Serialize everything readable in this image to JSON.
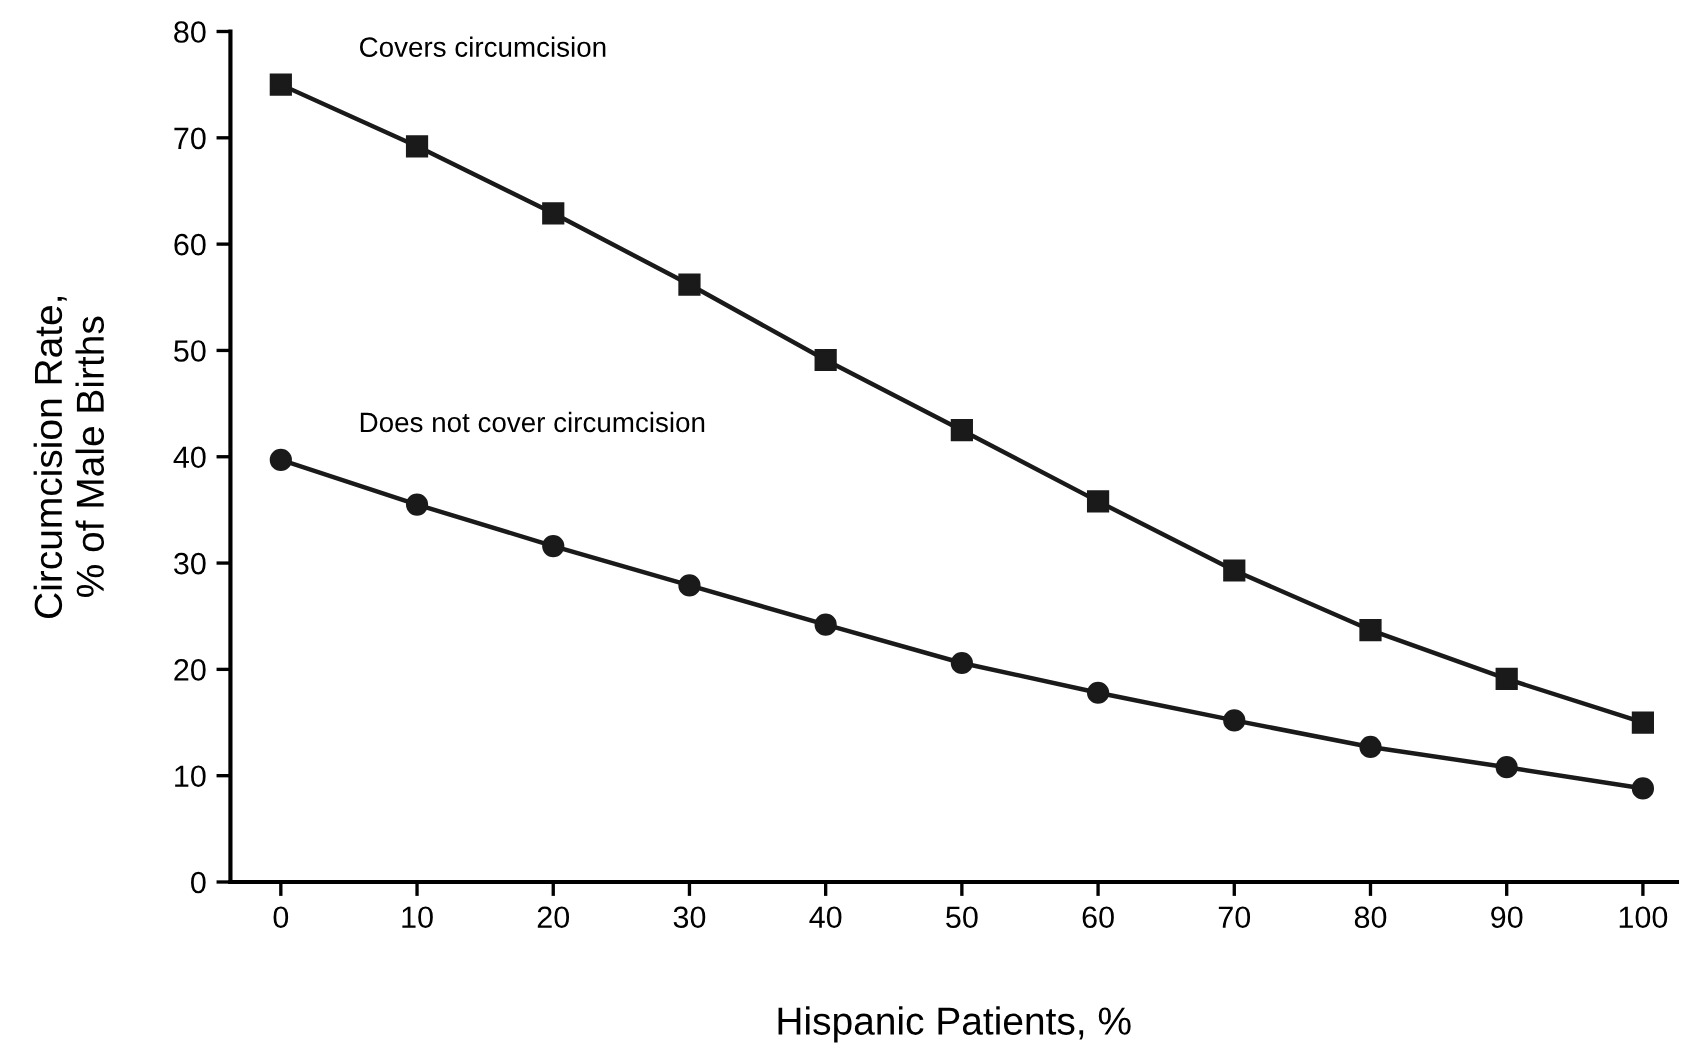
{
  "chart_data": {
    "type": "line",
    "xlabel": "Hispanic Patients, %",
    "ylabel": "Circumcision Rate,\n% of Male Births",
    "x": [
      0,
      10,
      20,
      30,
      40,
      50,
      60,
      70,
      80,
      90,
      100
    ],
    "series": [
      {
        "name": "Covers circumcision",
        "color": "#1a1a1a",
        "marker": "square",
        "values": [
          75,
          69.2,
          62.9,
          56.2,
          49.1,
          42.5,
          35.8,
          29.3,
          23.7,
          19.1,
          15
        ]
      },
      {
        "name": "Does not cover circumcision",
        "color": "#1a1a1a",
        "marker": "circle",
        "values": [
          39.7,
          35.5,
          31.6,
          27.9,
          24.2,
          20.6,
          17.8,
          15.2,
          12.7,
          10.8,
          8.8
        ]
      }
    ],
    "xlim": [
      -3.7,
      102.5
    ],
    "ylim": [
      0,
      80
    ],
    "xticks": [
      0,
      10,
      20,
      30,
      40,
      50,
      60,
      70,
      80,
      90,
      100
    ],
    "yticks": [
      0,
      10,
      20,
      30,
      40,
      50,
      60,
      70,
      80
    ],
    "grid": false,
    "legend": false,
    "line_style": "solid"
  }
}
